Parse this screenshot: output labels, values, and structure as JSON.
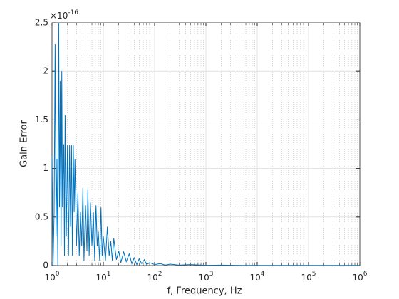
{
  "chart_data": {
    "type": "line",
    "x_label": "f, Frequency, Hz",
    "y_label": "Gain Error",
    "y_multiplier": {
      "base": "×10",
      "exponent": "-16"
    },
    "x_scale": "log",
    "grid": true,
    "minor_grid": true,
    "xlim": [
      1,
      1000000
    ],
    "ylim": [
      0,
      2.5
    ],
    "xticks": [
      {
        "value": 1,
        "label": "10",
        "exponent": "0"
      },
      {
        "value": 10,
        "label": "10",
        "exponent": "1"
      },
      {
        "value": 100,
        "label": "10",
        "exponent": "2"
      },
      {
        "value": 1000,
        "label": "10",
        "exponent": "3"
      },
      {
        "value": 10000,
        "label": "10",
        "exponent": "4"
      },
      {
        "value": 100000,
        "label": "10",
        "exponent": "5"
      },
      {
        "value": 1000000,
        "label": "10",
        "exponent": "6"
      }
    ],
    "yticks": [
      0,
      0.5,
      1,
      1.5,
      2,
      2.5
    ],
    "series": [
      {
        "color": "#0072bd",
        "x": [
          1,
          1.05,
          1.1,
          1.15,
          1.2,
          1.25,
          1.3,
          1.35,
          1.4,
          1.45,
          1.5,
          1.55,
          1.6,
          1.7,
          1.75,
          1.8,
          1.9,
          2.0,
          2.1,
          2.2,
          2.3,
          2.4,
          2.5,
          2.6,
          2.7,
          2.8,
          3.0,
          3.2,
          3.4,
          3.6,
          3.8,
          4.0,
          4.2,
          4.5,
          4.8,
          5.0,
          5.3,
          5.6,
          6.0,
          6.4,
          6.8,
          7.2,
          7.6,
          8.0,
          8.5,
          9.0,
          9.5,
          10,
          11,
          12,
          13,
          14,
          15,
          16,
          18,
          20,
          22,
          25,
          28,
          32,
          36,
          40,
          45,
          50,
          56,
          63,
          70,
          80,
          100,
          130,
          160,
          200,
          300,
          500,
          1000,
          2000,
          5000,
          10000,
          100000,
          1000000
        ],
        "values": [
          1.13,
          0,
          0.55,
          2.28,
          0.3,
          1.1,
          0,
          2.5,
          0.6,
          1.9,
          0.2,
          2.0,
          0.6,
          1.25,
          0.1,
          1.55,
          0.3,
          1.24,
          0.1,
          1.24,
          0.4,
          1.24,
          0.1,
          1.24,
          0.55,
          1.1,
          0.2,
          0.75,
          0.1,
          0.55,
          0.2,
          0.8,
          0.05,
          0.62,
          0.15,
          0.78,
          0.1,
          0.65,
          0.2,
          0.55,
          0.05,
          0.62,
          0.2,
          0.35,
          0.05,
          0.6,
          0.1,
          0.3,
          0.05,
          0.4,
          0.1,
          0.25,
          0.05,
          0.28,
          0.06,
          0.15,
          0.03,
          0.14,
          0.04,
          0.12,
          0.02,
          0.08,
          0.01,
          0.07,
          0.02,
          0.06,
          0.01,
          0.03,
          0.01,
          0.02,
          0.005,
          0.015,
          0.005,
          0.01,
          0.003,
          0.005,
          0.002,
          0.002,
          0.002,
          0.002
        ]
      }
    ]
  }
}
